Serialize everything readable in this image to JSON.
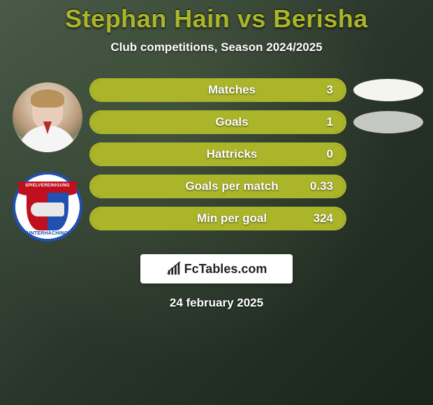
{
  "title": "Stephan Hain vs Berisha",
  "subtitle": "Club competitions, Season 2024/2025",
  "date": "24 february 2025",
  "logo_text": "FcTables.com",
  "colors": {
    "title": "#aab52a",
    "pill_outline": "#aab52a",
    "pill_fill": "#aab52a",
    "blob_white": "#f5f5f0",
    "blob_gray": "#c5c8c2",
    "background_start": "#4a5a4a",
    "background_end": "#1a251a"
  },
  "badge": {
    "top_text": "SPIELVEREINIGUNG",
    "bottom_text": "UNTERHACHING"
  },
  "stats": [
    {
      "label": "Matches",
      "value": "3",
      "fill_pct": 100,
      "blob": "white"
    },
    {
      "label": "Goals",
      "value": "1",
      "fill_pct": 100,
      "blob": "gray"
    },
    {
      "label": "Hattricks",
      "value": "0",
      "fill_pct": 100,
      "blob": null
    },
    {
      "label": "Goals per match",
      "value": "0.33",
      "fill_pct": 100,
      "blob": null
    },
    {
      "label": "Min per goal",
      "value": "324",
      "fill_pct": 100,
      "blob": null
    }
  ],
  "layout": {
    "pill_height": 34,
    "pill_radius": 17,
    "blob_width": 100,
    "blob_height": 32,
    "avatar_size": 100
  }
}
